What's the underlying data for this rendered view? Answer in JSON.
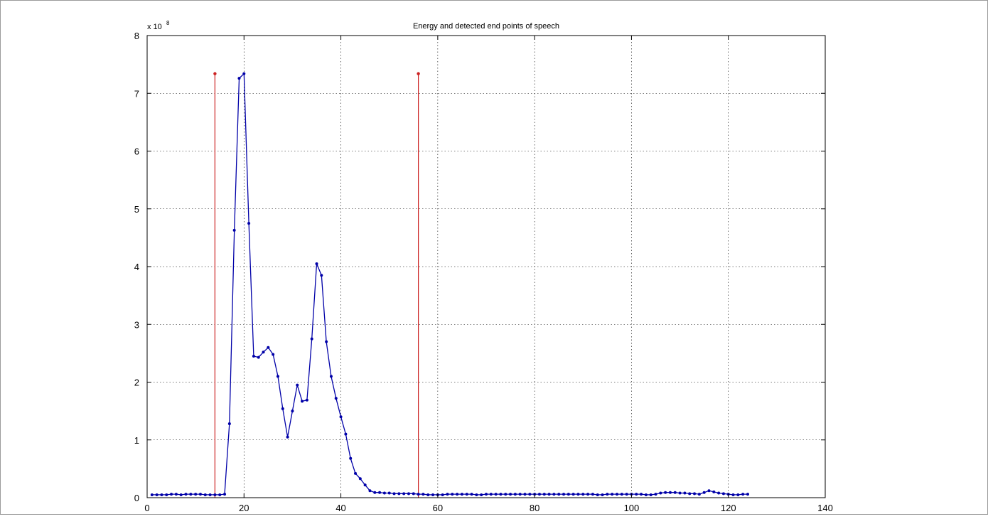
{
  "chart_data": {
    "type": "line",
    "title": "Energy and detected end points of speech",
    "xlabel": "",
    "ylabel": "",
    "y_scale_label": "x 10",
    "y_scale_exponent": "8",
    "xlim": [
      0,
      140
    ],
    "ylim": [
      0,
      8
    ],
    "x_ticks": [
      0,
      20,
      40,
      60,
      80,
      100,
      120,
      140
    ],
    "y_ticks": [
      0,
      1,
      2,
      3,
      4,
      5,
      6,
      7,
      8
    ],
    "grid": true,
    "legend": "none",
    "series": [
      {
        "color": "#0000a8",
        "marker": "dot",
        "x": [
          1,
          2,
          3,
          4,
          5,
          6,
          7,
          8,
          9,
          10,
          11,
          12,
          13,
          14,
          15,
          16,
          17,
          18,
          19,
          20,
          21,
          22,
          23,
          24,
          25,
          26,
          27,
          28,
          29,
          30,
          31,
          32,
          33,
          34,
          35,
          36,
          37,
          38,
          39,
          40,
          41,
          42,
          43,
          44,
          45,
          46,
          47,
          48,
          49,
          50,
          51,
          52,
          53,
          54,
          55,
          56,
          57,
          58,
          59,
          60,
          61,
          62,
          63,
          64,
          65,
          66,
          67,
          68,
          69,
          70,
          71,
          72,
          73,
          74,
          75,
          76,
          77,
          78,
          79,
          80,
          81,
          82,
          83,
          84,
          85,
          86,
          87,
          88,
          89,
          90,
          91,
          92,
          93,
          94,
          95,
          96,
          97,
          98,
          99,
          100,
          101,
          102,
          103,
          104,
          105,
          106,
          107,
          108,
          109,
          110,
          111,
          112,
          113,
          114,
          115,
          116,
          117,
          118,
          119,
          120,
          121,
          122,
          123,
          124
        ],
        "values": [
          0.05,
          0.05,
          0.05,
          0.05,
          0.06,
          0.06,
          0.05,
          0.06,
          0.06,
          0.06,
          0.06,
          0.05,
          0.05,
          0.05,
          0.05,
          0.06,
          1.28,
          4.63,
          7.26,
          7.34,
          4.75,
          2.45,
          2.43,
          2.52,
          2.6,
          2.48,
          2.1,
          1.54,
          1.05,
          1.5,
          1.95,
          1.67,
          1.69,
          2.75,
          4.05,
          3.85,
          2.7,
          2.1,
          1.72,
          1.4,
          1.1,
          0.68,
          0.42,
          0.33,
          0.22,
          0.12,
          0.09,
          0.09,
          0.08,
          0.08,
          0.07,
          0.07,
          0.07,
          0.07,
          0.07,
          0.06,
          0.06,
          0.05,
          0.05,
          0.05,
          0.05,
          0.06,
          0.06,
          0.06,
          0.06,
          0.06,
          0.06,
          0.05,
          0.05,
          0.06,
          0.06,
          0.06,
          0.06,
          0.06,
          0.06,
          0.06,
          0.06,
          0.06,
          0.06,
          0.06,
          0.06,
          0.06,
          0.06,
          0.06,
          0.06,
          0.06,
          0.06,
          0.06,
          0.06,
          0.06,
          0.06,
          0.06,
          0.05,
          0.05,
          0.06,
          0.06,
          0.06,
          0.06,
          0.06,
          0.06,
          0.06,
          0.06,
          0.05,
          0.05,
          0.06,
          0.08,
          0.09,
          0.09,
          0.09,
          0.08,
          0.08,
          0.07,
          0.07,
          0.06,
          0.09,
          0.12,
          0.1,
          0.08,
          0.07,
          0.06,
          0.05,
          0.05,
          0.06,
          0.06
        ]
      }
    ],
    "end_points": {
      "color": "#cc2222",
      "x": [
        14,
        56
      ],
      "value": 7.34
    }
  }
}
